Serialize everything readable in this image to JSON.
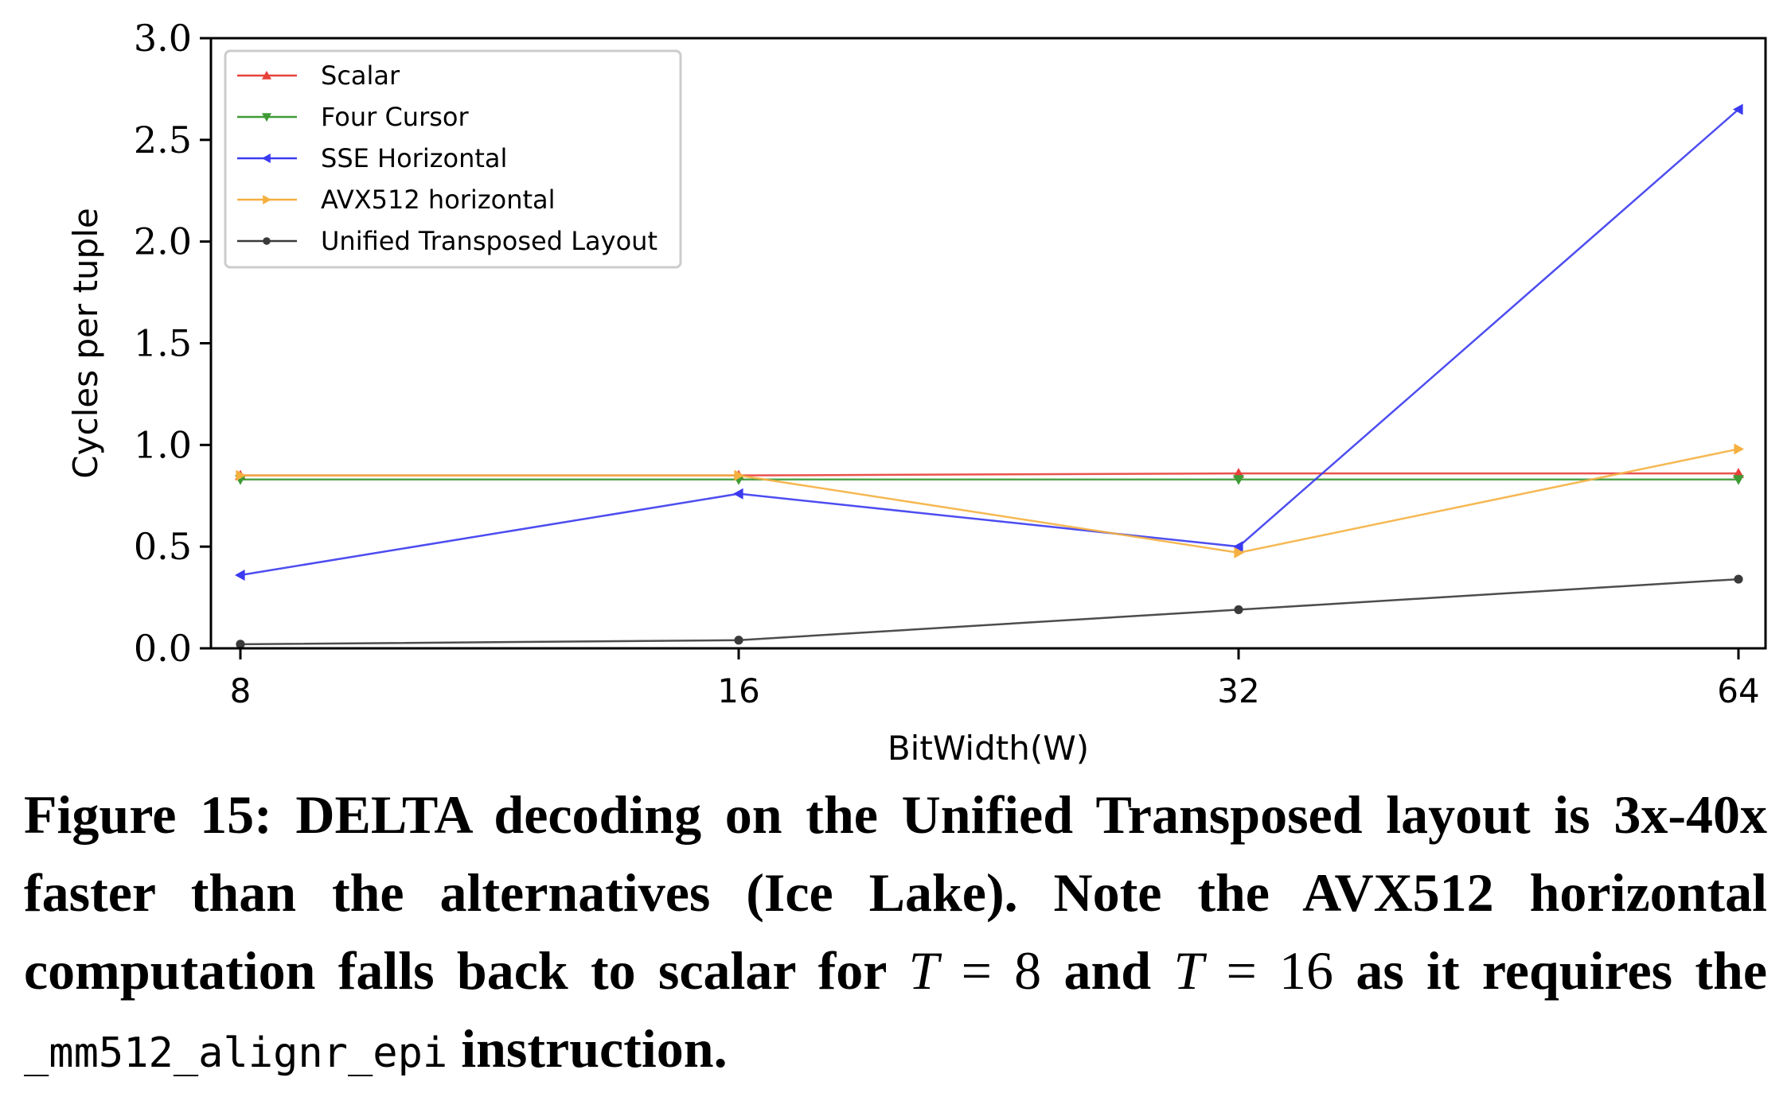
{
  "chart_data": {
    "type": "line",
    "x": [
      8,
      16,
      32,
      64
    ],
    "xticks": [
      "8",
      "16",
      "32",
      "64"
    ],
    "xlabel": "BitWidth(W)",
    "ylabel": "Cycles per tuple",
    "ylim": [
      0,
      3.0
    ],
    "yticks": [
      "0.0",
      "0.5",
      "1.0",
      "1.5",
      "2.0",
      "2.5",
      "3.0"
    ],
    "grid": false,
    "legend_position": "top-left",
    "series": [
      {
        "name": "Scalar",
        "color": "#e8403a",
        "marker": "triangle-up",
        "values": [
          0.85,
          0.85,
          0.86,
          0.86
        ]
      },
      {
        "name": "Four Cursor",
        "color": "#3e9b35",
        "marker": "triangle-down",
        "values": [
          0.83,
          0.83,
          0.83,
          0.83
        ]
      },
      {
        "name": "SSE Horizontal",
        "color": "#3a3af0",
        "marker": "triangle-left",
        "values": [
          0.36,
          0.76,
          0.5,
          2.65
        ]
      },
      {
        "name": "AVX512 horizontal",
        "color": "#f5b040",
        "marker": "triangle-right",
        "values": [
          0.85,
          0.85,
          0.47,
          0.98
        ]
      },
      {
        "name": "Unified Transposed Layout",
        "color": "#3a3a3a",
        "marker": "circle",
        "values": [
          0.02,
          0.04,
          0.19,
          0.34
        ]
      }
    ]
  },
  "caption": {
    "lead": "Figure 15: DELTA decoding on the Unified Transposed layout is 3x-40x faster than the alternatives (Ice Lake). Note the AVX512 horizontal computation falls back to scalar for ",
    "var1": "T",
    "eq1": " = 8",
    "mid": " and ",
    "var2": "T",
    "eq2": " = 16",
    "mid2": " as it requires the ",
    "code": "_mm512_alignr_epi",
    "tail": " instruction."
  }
}
